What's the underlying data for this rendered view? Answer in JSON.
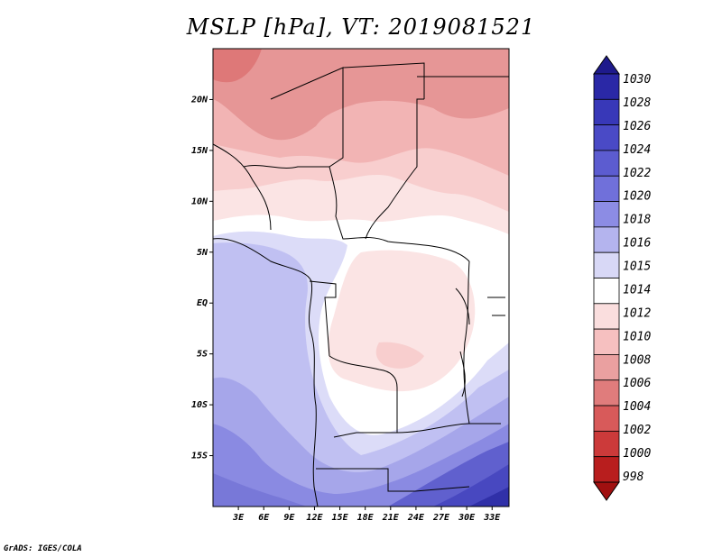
{
  "title": "MSLP [hPa], VT: 2019081521",
  "credit": "GrADS: IGES/COLA",
  "map": {
    "lat_labels": [
      "20N",
      "15N",
      "10N",
      "5N",
      "EQ",
      "5S",
      "10S",
      "15S"
    ],
    "lat_values": [
      20,
      15,
      10,
      5,
      0,
      -5,
      -10,
      -15
    ],
    "lon_labels": [
      "3E",
      "6E",
      "9E",
      "12E",
      "15E",
      "18E",
      "21E",
      "24E",
      "27E",
      "30E",
      "33E"
    ],
    "lon_values": [
      3,
      6,
      9,
      12,
      15,
      18,
      21,
      24,
      27,
      30,
      33
    ],
    "lon_range": [
      0,
      35
    ],
    "lat_range": [
      -20,
      25
    ],
    "field": "mean sea level pressure",
    "units": "hPa"
  },
  "colorbar": {
    "levels": [
      "1030",
      "1028",
      "1026",
      "1024",
      "1022",
      "1020",
      "1018",
      "1016",
      "1015",
      "1014",
      "1012",
      "1010",
      "1008",
      "1006",
      "1004",
      "1002",
      "1000",
      "998"
    ],
    "colors": [
      "#1e1a8c",
      "#2a28a6",
      "#3838b8",
      "#4a4ac6",
      "#5c5cd0",
      "#7070da",
      "#8c8ce4",
      "#b4b4ee",
      "#d8d8f6",
      "#ffffff",
      "#fadede",
      "#f6c0c0",
      "#eaa0a0",
      "#e07c7c",
      "#d85a5a",
      "#cc3a3a",
      "#b81e1e",
      "#a01010"
    ]
  }
}
